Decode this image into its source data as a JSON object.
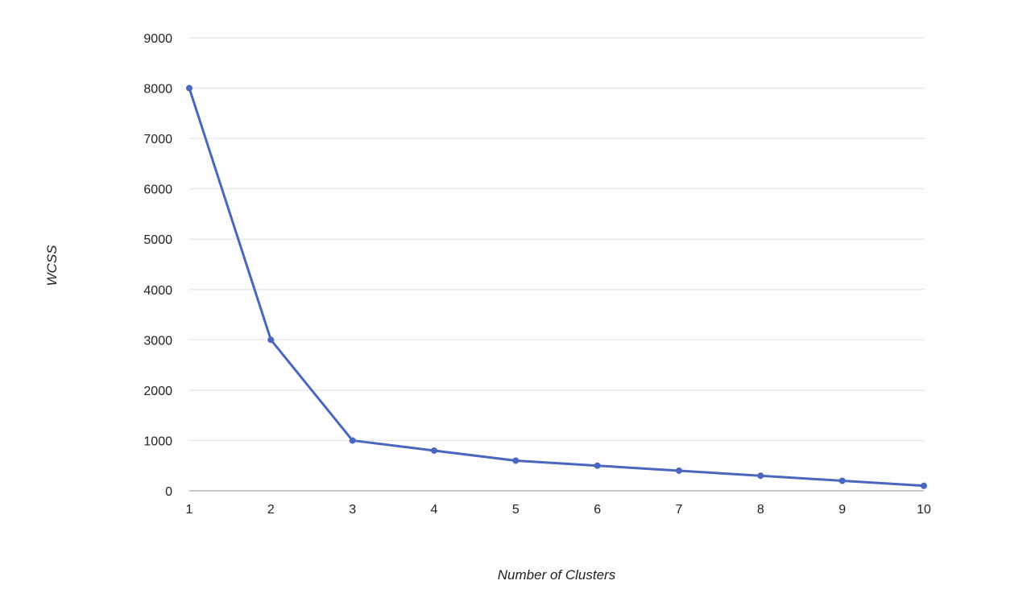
{
  "chart_data": {
    "type": "line",
    "title": "",
    "xlabel": "Number of Clusters",
    "ylabel": "WCSS",
    "x": [
      1,
      2,
      3,
      4,
      5,
      6,
      7,
      8,
      9,
      10
    ],
    "x_tick_labels": [
      "1",
      "2",
      "3",
      "4",
      "5",
      "6",
      "7",
      "8",
      "9",
      "10"
    ],
    "y_ticks": [
      0,
      1000,
      2000,
      3000,
      4000,
      5000,
      6000,
      7000,
      8000,
      9000
    ],
    "y_tick_labels": [
      "0",
      "1000",
      "2000",
      "3000",
      "4000",
      "5000",
      "6000",
      "7000",
      "8000",
      "9000"
    ],
    "xlim": [
      1,
      10
    ],
    "ylim": [
      0,
      9000
    ],
    "grid": true,
    "legend": "none",
    "series": [
      {
        "values": [
          8000,
          3000,
          1000,
          800,
          600,
          500,
          400,
          300,
          200,
          100
        ],
        "color": "#4a66bf"
      }
    ],
    "colors": {
      "gridline": "#e6e6e6",
      "baseline": "#b8b8b8",
      "series": "#4a66bf"
    }
  }
}
